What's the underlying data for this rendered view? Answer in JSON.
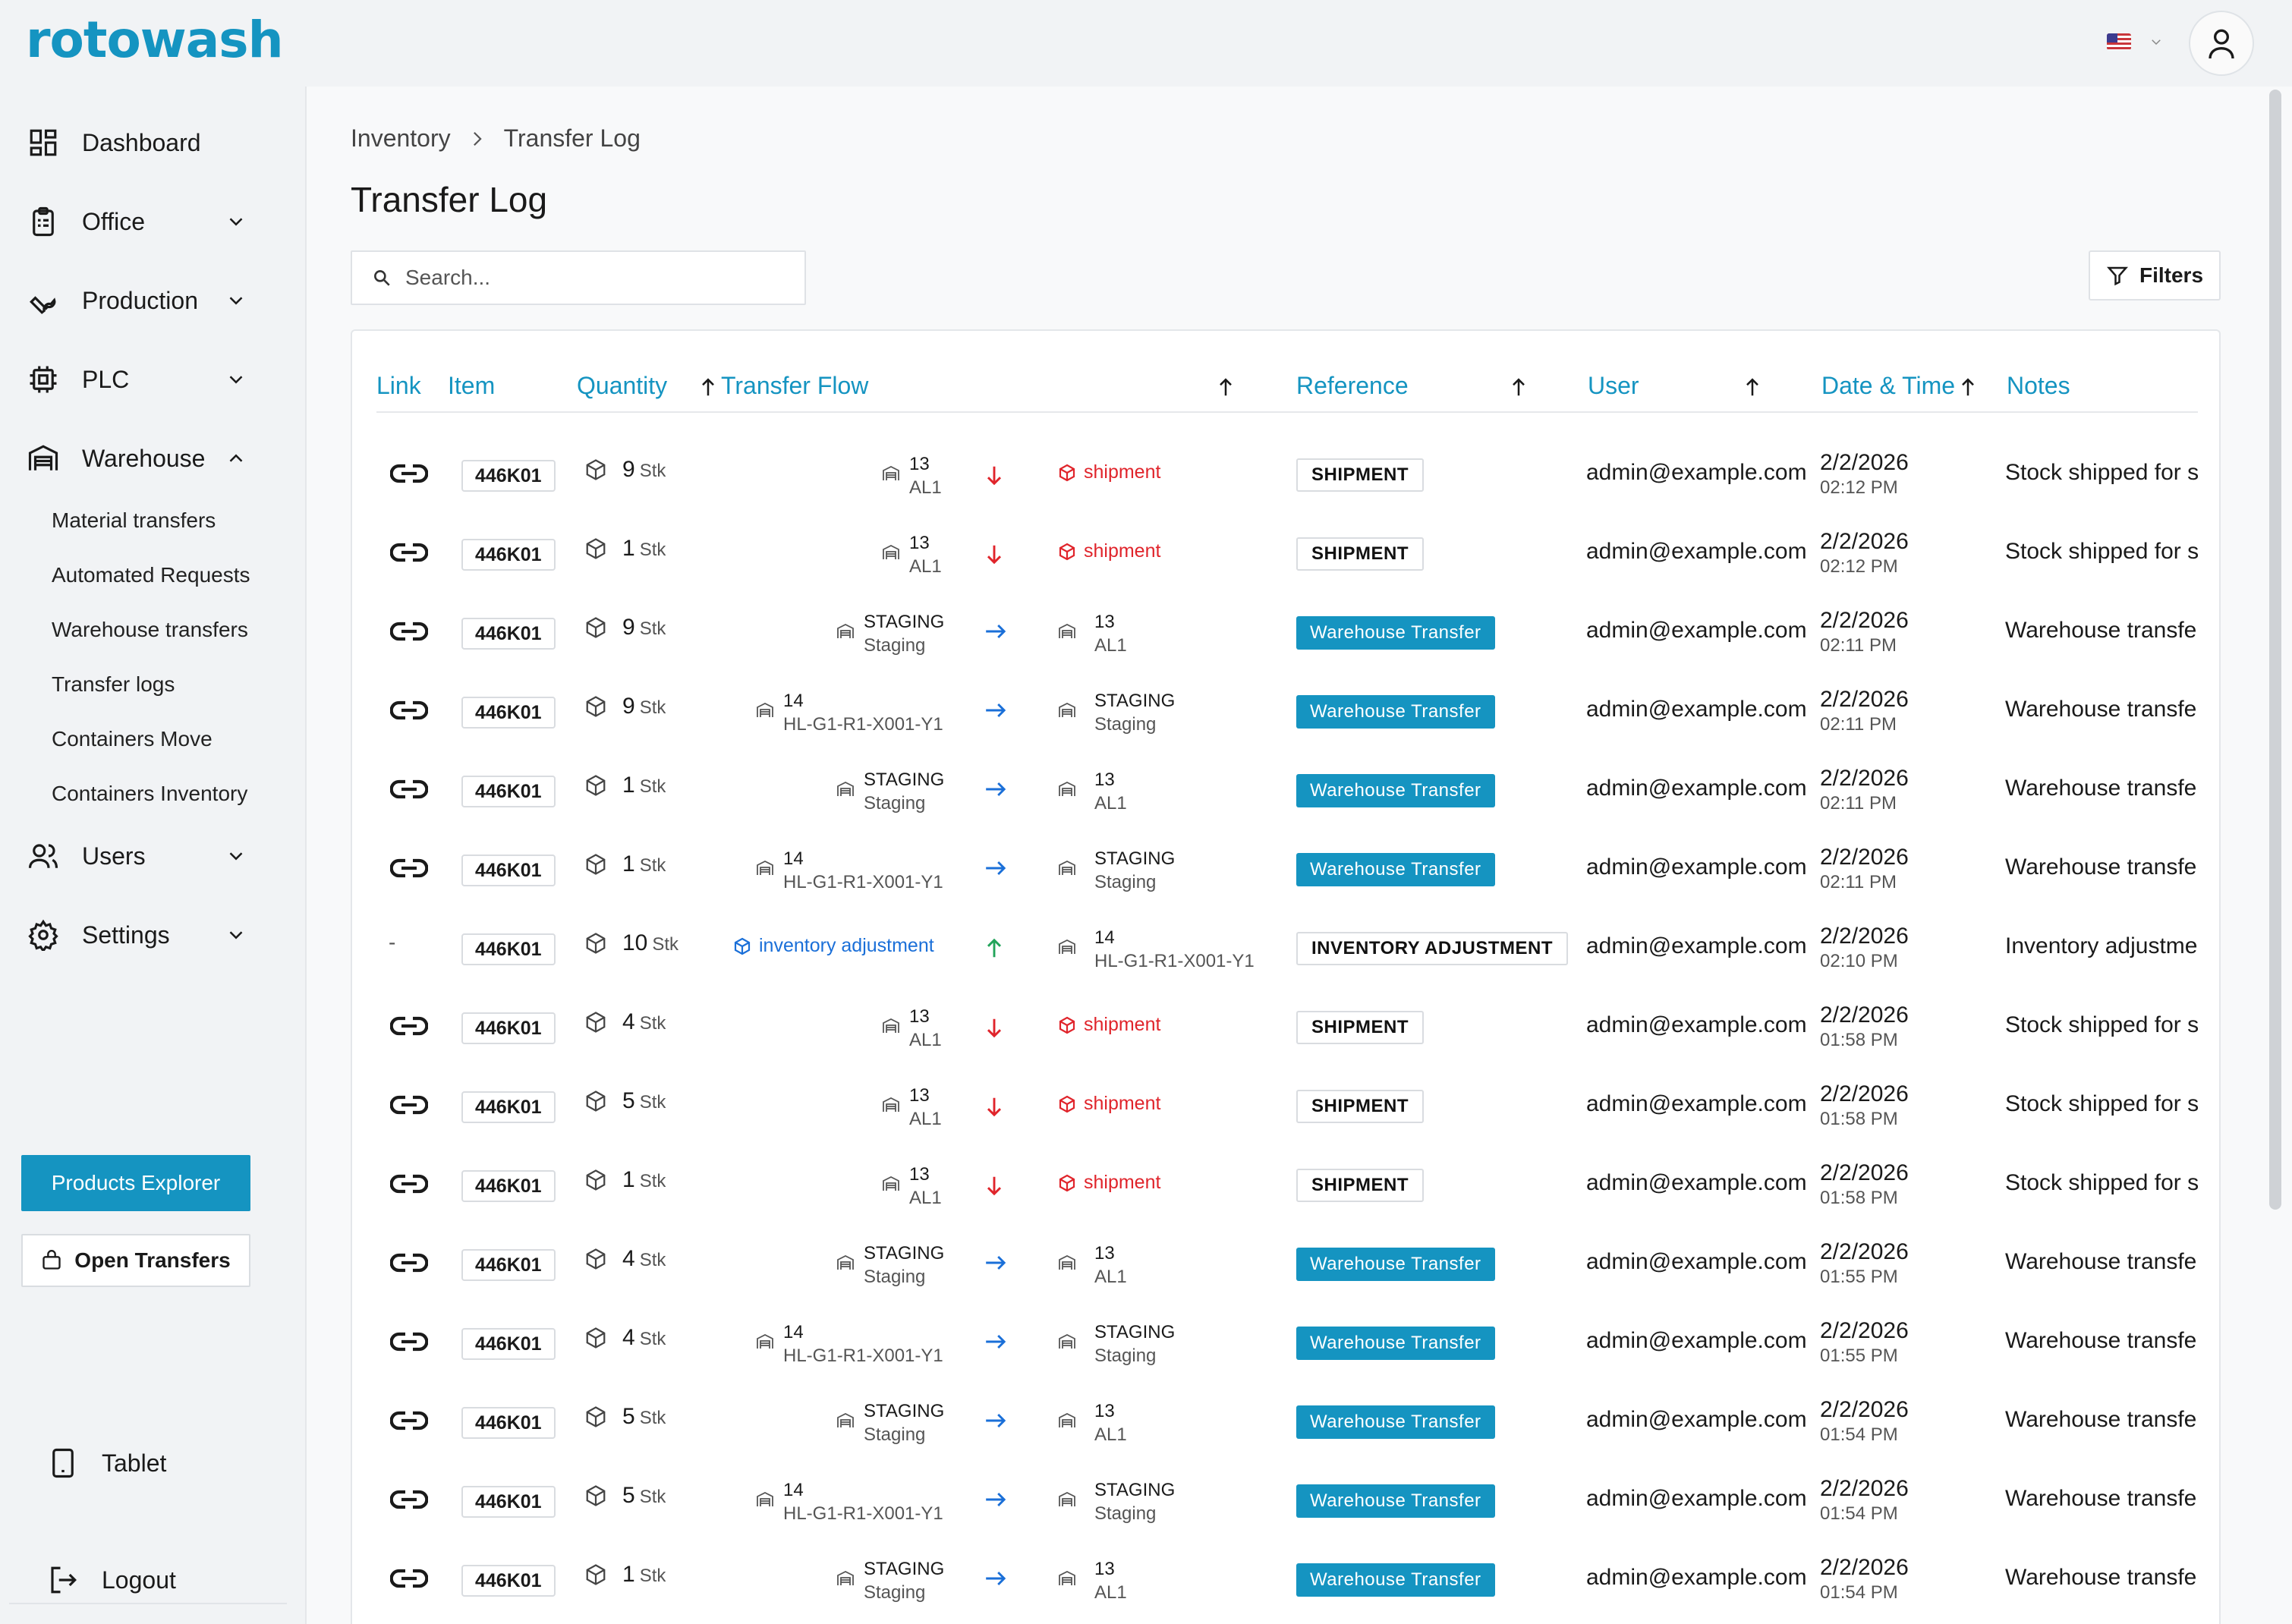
{
  "app": {
    "logo": "rotowash"
  },
  "sidebar": {
    "items": [
      {
        "label": "Dashboard"
      },
      {
        "label": "Office"
      },
      {
        "label": "Production"
      },
      {
        "label": "PLC"
      },
      {
        "label": "Warehouse"
      },
      {
        "label": "Users"
      },
      {
        "label": "Settings"
      }
    ],
    "warehouse_sub": [
      "Material transfers",
      "Automated Requests",
      "Warehouse transfers",
      "Transfer logs",
      "Containers Move",
      "Containers Inventory"
    ],
    "products_explorer": "Products Explorer",
    "open_transfers": "Open Transfers",
    "tablet": "Tablet",
    "logout": "Logout"
  },
  "main": {
    "breadcrumb": [
      "Inventory",
      "Transfer Log"
    ],
    "title": "Transfer Log",
    "search_placeholder": "Search...",
    "filters_label": "Filters",
    "columns": {
      "link": "Link",
      "item": "Item",
      "quantity": "Quantity",
      "flow": "Transfer Flow",
      "reference": "Reference",
      "user": "User",
      "datetime": "Date & Time",
      "notes": "Notes"
    }
  },
  "rows": [
    {
      "link": true,
      "item": "446K01",
      "qty": "9",
      "unit": "Stk",
      "kind": "ship",
      "src_main": "13",
      "src_sub": "AL1",
      "dst_label": "shipment",
      "ref": "SHIPMENT",
      "ref_style": "outline",
      "user": "admin@example.com",
      "date": "2/2/2026",
      "time": "02:12 PM",
      "notes": "Stock shipped for s"
    },
    {
      "link": true,
      "item": "446K01",
      "qty": "1",
      "unit": "Stk",
      "kind": "ship",
      "src_main": "13",
      "src_sub": "AL1",
      "dst_label": "shipment",
      "ref": "SHIPMENT",
      "ref_style": "outline",
      "user": "admin@example.com",
      "date": "2/2/2026",
      "time": "02:12 PM",
      "notes": "Stock shipped for s"
    },
    {
      "link": true,
      "item": "446K01",
      "qty": "9",
      "unit": "Stk",
      "kind": "transfer",
      "src_main": "STAGING",
      "src_sub": "Staging",
      "dst_main": "13",
      "dst_sub": "AL1",
      "ref": "Warehouse Transfer",
      "ref_style": "filled",
      "user": "admin@example.com",
      "date": "2/2/2026",
      "time": "02:11 PM",
      "notes": "Warehouse transfer"
    },
    {
      "link": true,
      "item": "446K01",
      "qty": "9",
      "unit": "Stk",
      "kind": "transfer",
      "src_main": "14",
      "src_sub": "HL-G1-R1-X001-Y1",
      "dst_main": "STAGING",
      "dst_sub": "Staging",
      "ref": "Warehouse Transfer",
      "ref_style": "filled",
      "user": "admin@example.com",
      "date": "2/2/2026",
      "time": "02:11 PM",
      "notes": "Warehouse transfer"
    },
    {
      "link": true,
      "item": "446K01",
      "qty": "1",
      "unit": "Stk",
      "kind": "transfer",
      "src_main": "STAGING",
      "src_sub": "Staging",
      "dst_main": "13",
      "dst_sub": "AL1",
      "ref": "Warehouse Transfer",
      "ref_style": "filled",
      "user": "admin@example.com",
      "date": "2/2/2026",
      "time": "02:11 PM",
      "notes": "Warehouse transfer"
    },
    {
      "link": true,
      "item": "446K01",
      "qty": "1",
      "unit": "Stk",
      "kind": "transfer",
      "src_main": "14",
      "src_sub": "HL-G1-R1-X001-Y1",
      "dst_main": "STAGING",
      "dst_sub": "Staging",
      "ref": "Warehouse Transfer",
      "ref_style": "filled",
      "user": "admin@example.com",
      "date": "2/2/2026",
      "time": "02:11 PM",
      "notes": "Warehouse transfer"
    },
    {
      "link": false,
      "item": "446K01",
      "qty": "10",
      "unit": "Stk",
      "kind": "adjust",
      "src_label": "inventory adjustment",
      "dst_main": "14",
      "dst_sub": "HL-G1-R1-X001-Y1",
      "ref": "INVENTORY ADJUSTMENT",
      "ref_style": "outline",
      "user": "admin@example.com",
      "date": "2/2/2026",
      "time": "02:10 PM",
      "notes": "Inventory adjustmer"
    },
    {
      "link": true,
      "item": "446K01",
      "qty": "4",
      "unit": "Stk",
      "kind": "ship",
      "src_main": "13",
      "src_sub": "AL1",
      "dst_label": "shipment",
      "ref": "SHIPMENT",
      "ref_style": "outline",
      "user": "admin@example.com",
      "date": "2/2/2026",
      "time": "01:58 PM",
      "notes": "Stock shipped for s"
    },
    {
      "link": true,
      "item": "446K01",
      "qty": "5",
      "unit": "Stk",
      "kind": "ship",
      "src_main": "13",
      "src_sub": "AL1",
      "dst_label": "shipment",
      "ref": "SHIPMENT",
      "ref_style": "outline",
      "user": "admin@example.com",
      "date": "2/2/2026",
      "time": "01:58 PM",
      "notes": "Stock shipped for s"
    },
    {
      "link": true,
      "item": "446K01",
      "qty": "1",
      "unit": "Stk",
      "kind": "ship",
      "src_main": "13",
      "src_sub": "AL1",
      "dst_label": "shipment",
      "ref": "SHIPMENT",
      "ref_style": "outline",
      "user": "admin@example.com",
      "date": "2/2/2026",
      "time": "01:58 PM",
      "notes": "Stock shipped for s"
    },
    {
      "link": true,
      "item": "446K01",
      "qty": "4",
      "unit": "Stk",
      "kind": "transfer",
      "src_main": "STAGING",
      "src_sub": "Staging",
      "dst_main": "13",
      "dst_sub": "AL1",
      "ref": "Warehouse Transfer",
      "ref_style": "filled",
      "user": "admin@example.com",
      "date": "2/2/2026",
      "time": "01:55 PM",
      "notes": "Warehouse transfer"
    },
    {
      "link": true,
      "item": "446K01",
      "qty": "4",
      "unit": "Stk",
      "kind": "transfer",
      "src_main": "14",
      "src_sub": "HL-G1-R1-X001-Y1",
      "dst_main": "STAGING",
      "dst_sub": "Staging",
      "ref": "Warehouse Transfer",
      "ref_style": "filled",
      "user": "admin@example.com",
      "date": "2/2/2026",
      "time": "01:55 PM",
      "notes": "Warehouse transfer"
    },
    {
      "link": true,
      "item": "446K01",
      "qty": "5",
      "unit": "Stk",
      "kind": "transfer",
      "src_main": "STAGING",
      "src_sub": "Staging",
      "dst_main": "13",
      "dst_sub": "AL1",
      "ref": "Warehouse Transfer",
      "ref_style": "filled",
      "user": "admin@example.com",
      "date": "2/2/2026",
      "time": "01:54 PM",
      "notes": "Warehouse transfer"
    },
    {
      "link": true,
      "item": "446K01",
      "qty": "5",
      "unit": "Stk",
      "kind": "transfer",
      "src_main": "14",
      "src_sub": "HL-G1-R1-X001-Y1",
      "dst_main": "STAGING",
      "dst_sub": "Staging",
      "ref": "Warehouse Transfer",
      "ref_style": "filled",
      "user": "admin@example.com",
      "date": "2/2/2026",
      "time": "01:54 PM",
      "notes": "Warehouse transfer"
    },
    {
      "link": true,
      "item": "446K01",
      "qty": "1",
      "unit": "Stk",
      "kind": "transfer",
      "src_main": "STAGING",
      "src_sub": "Staging",
      "dst_main": "13",
      "dst_sub": "AL1",
      "ref": "Warehouse Transfer",
      "ref_style": "filled",
      "user": "admin@example.com",
      "date": "2/2/2026",
      "time": "01:54 PM",
      "notes": "Warehouse transfer"
    }
  ],
  "colors": {
    "accent": "#1594c1",
    "danger": "#e0242b",
    "link_blue": "#1a6fd8",
    "up_green": "#22a45a"
  }
}
